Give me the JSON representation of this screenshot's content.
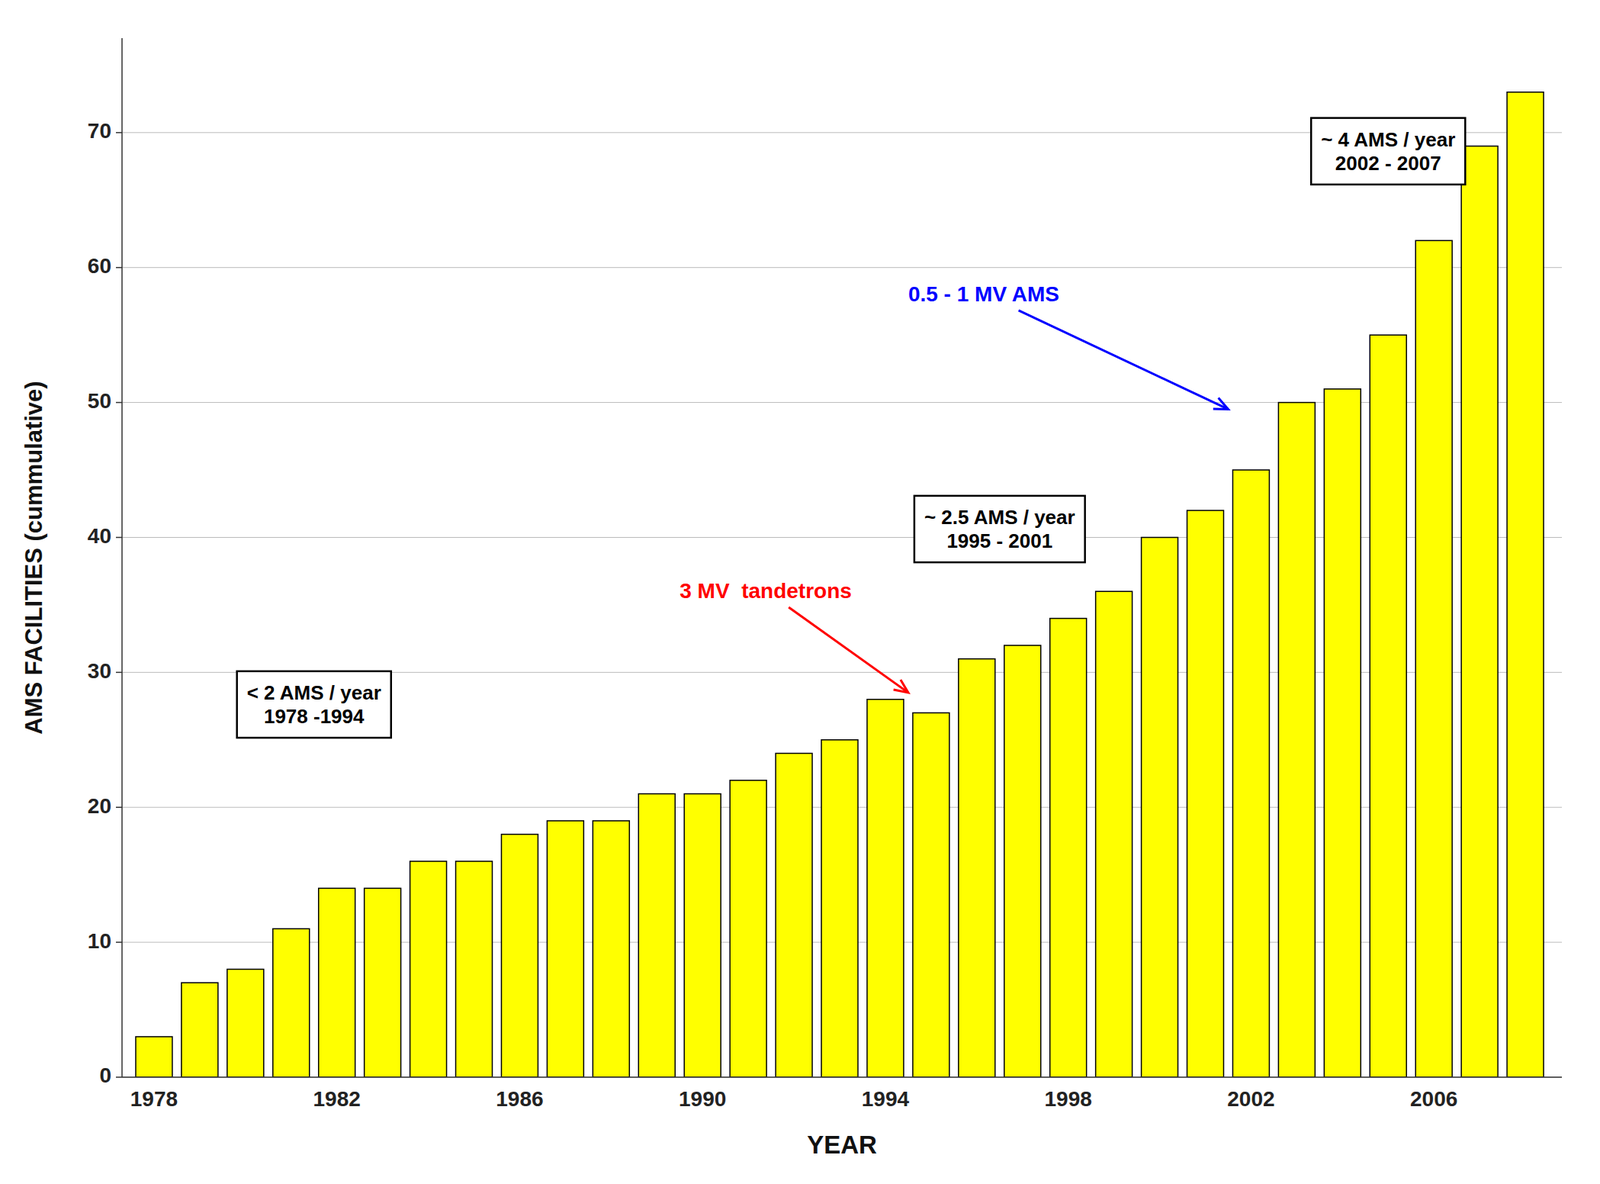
{
  "chart_data": {
    "type": "bar",
    "x": [
      1978,
      1979,
      1980,
      1981,
      1982,
      1983,
      1984,
      1985,
      1986,
      1987,
      1988,
      1989,
      1990,
      1991,
      1992,
      1993,
      1994,
      1995,
      1996,
      1997,
      1998,
      1999,
      2000,
      2001,
      2002,
      2003,
      2004,
      2005,
      2006,
      2007,
      2008
    ],
    "values": [
      3,
      7,
      8,
      11,
      14,
      14,
      16,
      16,
      18,
      19,
      19,
      21,
      21,
      22,
      24,
      25,
      28,
      27,
      31,
      32,
      34,
      36,
      40,
      42,
      45,
      50,
      51,
      55,
      62,
      69,
      73
    ],
    "color": "#FFFF00",
    "xlabel": "YEAR",
    "ylabel": "AMS FACILITIES (cummulative)",
    "xlim": [
      1977.3,
      2008.8
    ],
    "xticks": [
      1978,
      1982,
      1986,
      1990,
      1994,
      1998,
      2002,
      2006
    ],
    "ylim": [
      0,
      77
    ],
    "yticks": [
      0,
      10,
      20,
      30,
      40,
      50,
      60,
      70
    ],
    "grid": true,
    "annotations": [
      {
        "text": "< 2 AMS / year\n1978 -1994"
      },
      {
        "text": "~ 2.5 AMS / year\n1995 - 2001"
      },
      {
        "text": "~ 4 AMS / year\n2002 - 2007"
      },
      {
        "text": "3 MV  tandetrons",
        "color": "#FF0000"
      },
      {
        "text": "0.5 - 1 MV AMS",
        "color": "#0000FF"
      }
    ]
  }
}
